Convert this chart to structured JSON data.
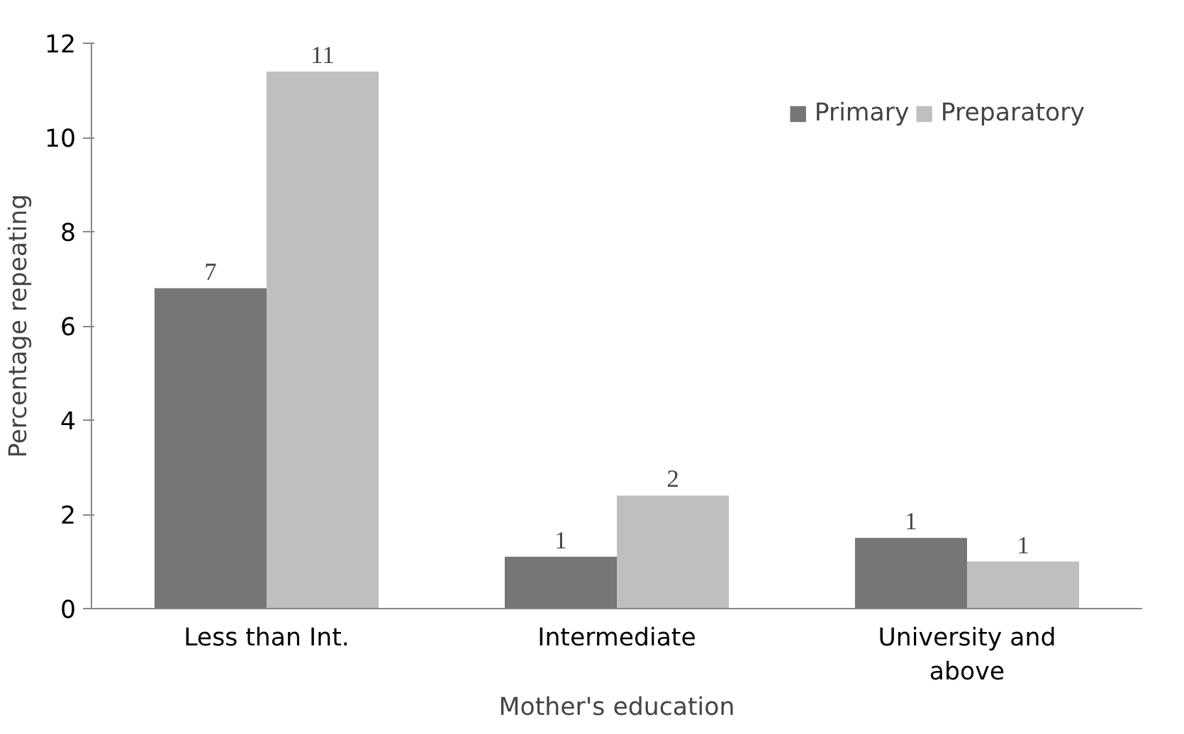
{
  "chart_data": {
    "type": "bar",
    "xlabel": "Mother's education",
    "ylabel": "Percentage repeating",
    "categories": [
      "Less than Int.",
      "Intermediate",
      "University and\nabove"
    ],
    "series": [
      {
        "name": "Primary",
        "color": "#767676",
        "values": [
          6.8,
          1.1,
          1.5
        ],
        "value_labels": [
          "7",
          "1",
          "1"
        ]
      },
      {
        "name": "Preparatory",
        "color": "#bfbfbf",
        "values": [
          11.4,
          2.4,
          1.0
        ],
        "value_labels": [
          "11",
          "2",
          "1"
        ]
      }
    ],
    "ylim": [
      0,
      12
    ],
    "yticks": [
      0,
      2,
      4,
      6,
      8,
      10,
      12
    ],
    "grid": false,
    "legend": "top right"
  }
}
